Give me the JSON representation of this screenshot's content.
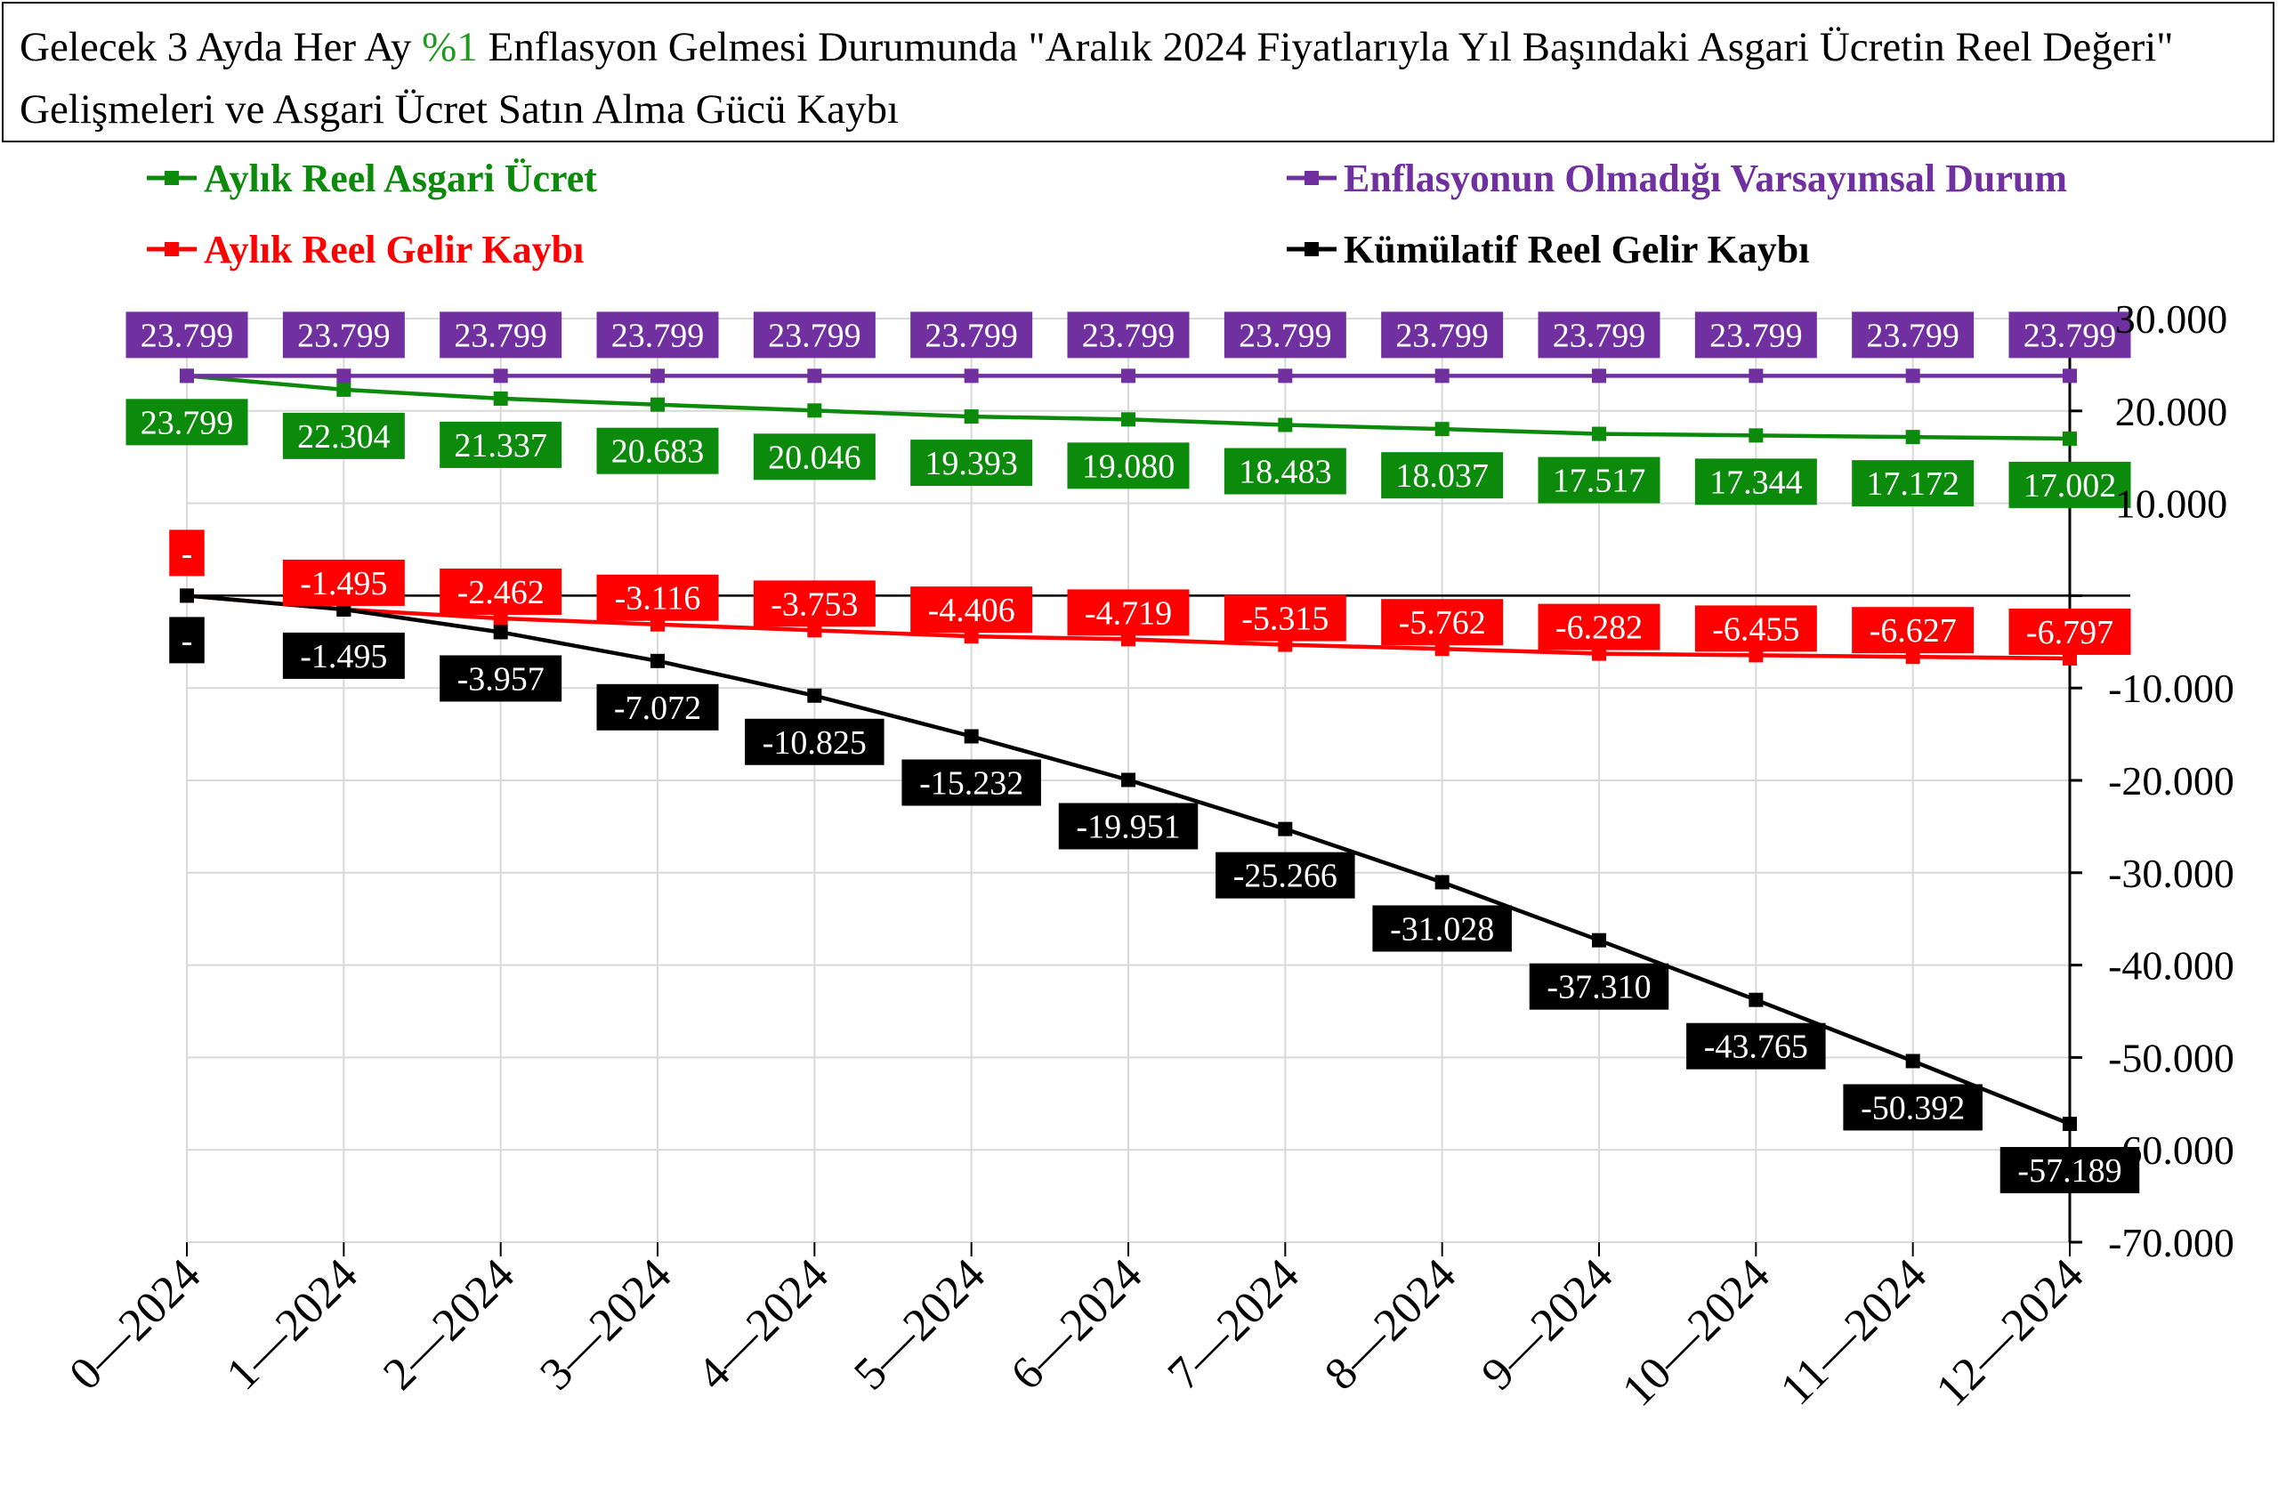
{
  "title": {
    "part1": "Gelecek 3 Ayda Her Ay ",
    "highlight": "%1",
    "part2": " Enflasyon Gelmesi Durumunda \"Aralık 2024 Fiyatlarıyla Yıl Başındaki Asgari Ücretin Reel Değeri\" Gelişmeleri ve Asgari Ücret Satın Alma Gücü Kaybı"
  },
  "chart_data": {
    "type": "line",
    "categories": [
      "0—2024",
      "1—2024",
      "2—2024",
      "3—2024",
      "4—2024",
      "5—2024",
      "6—2024",
      "7—2024",
      "8—2024",
      "9—2024",
      "10—2024",
      "11—2024",
      "12—2024"
    ],
    "ylim": [
      -70000,
      30000
    ],
    "yticks": [
      30000,
      20000,
      10000,
      0,
      -10000,
      -20000,
      -30000,
      -40000,
      -50000,
      -60000,
      -70000
    ],
    "ytick_labels": [
      "30.000",
      "20.000",
      "10.000",
      "",
      "-10.000",
      "-20.000",
      "-30.000",
      "-40.000",
      "-50.000",
      "-60.000",
      "-70.000"
    ],
    "grid": true,
    "y_axis_position": "right",
    "series": [
      {
        "name": "Aylık Reel Asgari Ücret",
        "color": "#0b8a0b",
        "values": [
          23799,
          22304,
          21337,
          20683,
          20046,
          19393,
          19080,
          18483,
          18037,
          17517,
          17344,
          17172,
          17002
        ],
        "labels": [
          "23.799",
          "22.304",
          "21.337",
          "20.683",
          "20.046",
          "19.393",
          "19.080",
          "18.483",
          "18.037",
          "17.517",
          "17.344",
          "17.172",
          "17.002"
        ]
      },
      {
        "name": "Enflasyonun Olmadığı Varsayımsal Durum",
        "color": "#7030a0",
        "values": [
          23799,
          23799,
          23799,
          23799,
          23799,
          23799,
          23799,
          23799,
          23799,
          23799,
          23799,
          23799,
          23799
        ],
        "labels": [
          "23.799",
          "23.799",
          "23.799",
          "23.799",
          "23.799",
          "23.799",
          "23.799",
          "23.799",
          "23.799",
          "23.799",
          "23.799",
          "23.799",
          "23.799"
        ]
      },
      {
        "name": "Aylık Reel Gelir Kaybı",
        "color": "#ff0000",
        "values": [
          0,
          -1495,
          -2462,
          -3116,
          -3753,
          -4406,
          -4719,
          -5315,
          -5762,
          -6282,
          -6455,
          -6627,
          -6797
        ],
        "labels": [
          "-",
          "-1.495",
          "-2.462",
          "-3.116",
          "-3.753",
          "-4.406",
          "-4.719",
          "-5.315",
          "-5.762",
          "-6.282",
          "-6.455",
          "-6.627",
          "-6.797"
        ]
      },
      {
        "name": "Kümülatif Reel Gelir Kaybı",
        "color": "#000000",
        "values": [
          0,
          -1495,
          -3957,
          -7072,
          -10825,
          -15232,
          -19951,
          -25266,
          -31028,
          -37310,
          -43765,
          -50392,
          -57189
        ],
        "labels": [
          "-",
          "-1.495",
          "-3.957",
          "-7.072",
          "-10.825",
          "-15.232",
          "-19.951",
          "-25.266",
          "-31.028",
          "-37.310",
          "-43.765",
          "-50.392",
          "-57.189"
        ]
      }
    ]
  }
}
